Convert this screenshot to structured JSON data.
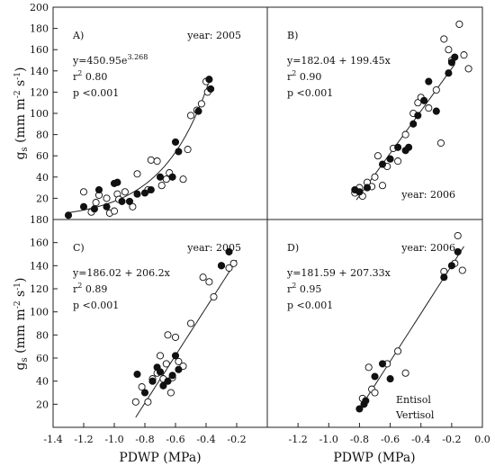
{
  "chart_data": [
    {
      "type": "scatter",
      "panel_label": "A)",
      "year_label": "year: 2005",
      "equation": {
        "base": "y=450.95e",
        "exp": "3.268"
      },
      "r2": {
        "pre": "r",
        "sup": "2",
        "val": " 0.80"
      },
      "p_text": "p <0.001",
      "fit": {
        "kind": "exp",
        "a": 450.95,
        "b": 3.268,
        "x_range": [
          -1.3,
          -0.37
        ]
      },
      "xlim": [
        -1.4,
        0.0
      ],
      "ylim": [
        0,
        200
      ],
      "series": [
        {
          "name": "Entisol",
          "marker": "open",
          "x": [
            -1.2,
            -1.15,
            -1.12,
            -1.1,
            -1.05,
            -1.03,
            -1.0,
            -0.98,
            -0.97,
            -0.93,
            -0.88,
            -0.85,
            -0.78,
            -0.76,
            -0.72,
            -0.69,
            -0.66,
            -0.64,
            -0.55,
            -0.52,
            -0.5,
            -0.46,
            -0.43,
            -0.4,
            -0.39
          ],
          "y": [
            26,
            7,
            16,
            23,
            20,
            6,
            8,
            24,
            19,
            26,
            12,
            43,
            28,
            56,
            55,
            32,
            38,
            44,
            38,
            66,
            98,
            103,
            109,
            130,
            120
          ]
        },
        {
          "name": "Vertisol",
          "marker": "filled",
          "x": [
            -1.3,
            -1.2,
            -1.13,
            -1.1,
            -1.05,
            -1.0,
            -0.98,
            -0.95,
            -0.9,
            -0.85,
            -0.8,
            -0.76,
            -0.7,
            -0.62,
            -0.6,
            -0.58,
            -0.45,
            -0.38,
            -0.37
          ],
          "y": [
            4,
            12,
            10,
            28,
            12,
            34,
            35,
            17,
            17,
            24,
            25,
            28,
            40,
            40,
            73,
            64,
            102,
            132,
            123
          ]
        }
      ]
    },
    {
      "type": "scatter",
      "panel_label": "B)",
      "year_label": "year: 2006",
      "equation": {
        "base": "y=182.04 + 199.45x",
        "exp": ""
      },
      "r2": {
        "pre": "r",
        "sup": "2",
        "val": " 0.90"
      },
      "p_text": "p <0.001",
      "fit": {
        "kind": "linear",
        "a": 182.04,
        "b": 199.45,
        "x_range": [
          -0.82,
          -0.18
        ]
      },
      "xlim": [
        -1.4,
        0.0
      ],
      "ylim": [
        0,
        200
      ],
      "series": [
        {
          "name": "Entisol",
          "marker": "open",
          "x": [
            -0.83,
            -0.8,
            -0.78,
            -0.75,
            -0.72,
            -0.7,
            -0.68,
            -0.65,
            -0.62,
            -0.58,
            -0.55,
            -0.5,
            -0.45,
            -0.42,
            -0.4,
            -0.35,
            -0.3,
            -0.27,
            -0.25,
            -0.22,
            -0.2,
            -0.15,
            -0.12,
            -0.09
          ],
          "y": [
            25,
            30,
            22,
            35,
            31,
            40,
            60,
            32,
            50,
            67,
            55,
            80,
            100,
            110,
            115,
            105,
            122,
            72,
            170,
            160,
            150,
            184,
            155,
            142
          ]
        },
        {
          "name": "Vertisol",
          "marker": "filled",
          "x": [
            -0.83,
            -0.8,
            -0.75,
            -0.65,
            -0.6,
            -0.55,
            -0.5,
            -0.48,
            -0.45,
            -0.42,
            -0.38,
            -0.35,
            -0.3,
            -0.22,
            -0.2,
            -0.18
          ],
          "y": [
            28,
            26,
            30,
            52,
            57,
            68,
            65,
            68,
            90,
            98,
            112,
            130,
            102,
            138,
            148,
            153
          ]
        }
      ]
    },
    {
      "type": "scatter",
      "panel_label": "C)",
      "year_label": "year: 2005",
      "equation": {
        "base": "y=186.02 + 206.2x",
        "exp": ""
      },
      "r2": {
        "pre": "r",
        "sup": "2",
        "val": " 0.89"
      },
      "p_text": "p <0.001",
      "fit": {
        "kind": "linear",
        "a": 186.02,
        "b": 206.2,
        "x_range": [
          -0.86,
          -0.2
        ]
      },
      "xlim": [
        -1.4,
        0.0
      ],
      "ylim": [
        0,
        180
      ],
      "series": [
        {
          "name": "Entisol",
          "marker": "open",
          "x": [
            -0.86,
            -0.82,
            -0.78,
            -0.75,
            -0.72,
            -0.7,
            -0.68,
            -0.66,
            -0.65,
            -0.63,
            -0.62,
            -0.6,
            -0.58,
            -0.55,
            -0.5,
            -0.42,
            -0.38,
            -0.35,
            -0.3,
            -0.25,
            -0.22
          ],
          "y": [
            22,
            35,
            22,
            42,
            47,
            62,
            42,
            55,
            80,
            30,
            43,
            78,
            57,
            53,
            90,
            130,
            126,
            113,
            140,
            138,
            142
          ]
        },
        {
          "name": "Vertisol",
          "marker": "filled",
          "x": [
            -0.85,
            -0.8,
            -0.75,
            -0.72,
            -0.7,
            -0.68,
            -0.65,
            -0.62,
            -0.6,
            -0.58,
            -0.3,
            -0.25
          ],
          "y": [
            46,
            30,
            40,
            52,
            48,
            36,
            40,
            45,
            62,
            50,
            140,
            152
          ]
        }
      ]
    },
    {
      "type": "scatter",
      "panel_label": "D)",
      "year_label": "year: 2006",
      "equation": {
        "base": "y=181.59 + 207.33x",
        "exp": ""
      },
      "r2": {
        "pre": "r",
        "sup": "2",
        "val": " 0.95"
      },
      "p_text": "p <0.001",
      "fit": {
        "kind": "linear",
        "a": 181.59,
        "b": 207.33,
        "x_range": [
          -0.8,
          -0.12
        ]
      },
      "xlim": [
        -1.4,
        0.0
      ],
      "ylim": [
        0,
        180
      ],
      "series": [
        {
          "name": "Entisol",
          "marker": "open",
          "x": [
            -0.78,
            -0.74,
            -0.72,
            -0.7,
            -0.62,
            -0.55,
            -0.5,
            -0.25,
            -0.18,
            -0.16,
            -0.13
          ],
          "y": [
            25,
            52,
            33,
            30,
            55,
            66,
            47,
            135,
            142,
            166,
            136
          ]
        },
        {
          "name": "Vertisol",
          "marker": "filled",
          "x": [
            -0.8,
            -0.77,
            -0.76,
            -0.7,
            -0.65,
            -0.6,
            -0.25,
            -0.2,
            -0.16
          ],
          "y": [
            16,
            20,
            23,
            44,
            55,
            42,
            130,
            140,
            152
          ]
        }
      ]
    }
  ],
  "axes": {
    "y_title_base": "g",
    "y_title_sub": "s",
    "y_title_unit_pre": " (mm m",
    "y_title_unit_sup1": "-2",
    "y_title_unit_mid": " s",
    "y_title_unit_sup2": "-1",
    "y_title_unit_post": ")",
    "x_title": "PDWP (MPa)",
    "top_y_ticks": [
      "20",
      "40",
      "60",
      "80",
      "100",
      "120",
      "140",
      "160",
      "180",
      "200"
    ],
    "bottom_y_ticks": [
      "20",
      "40",
      "60",
      "80",
      "100",
      "120",
      "140",
      "160",
      "180"
    ],
    "left_x_ticks": [
      "-1.4",
      "-1.2",
      "-1.0",
      "-0.8",
      "-0.6",
      "-0.4",
      "-0.2"
    ],
    "right_x_ticks": [
      "-1.2",
      "-1.0",
      "-0.8",
      "-0.6",
      "-0.4",
      "-0.2",
      "0.0"
    ]
  },
  "legend": {
    "entries": [
      "Entisol",
      "Vertisol"
    ],
    "placement": "bottom-right of panel D"
  }
}
